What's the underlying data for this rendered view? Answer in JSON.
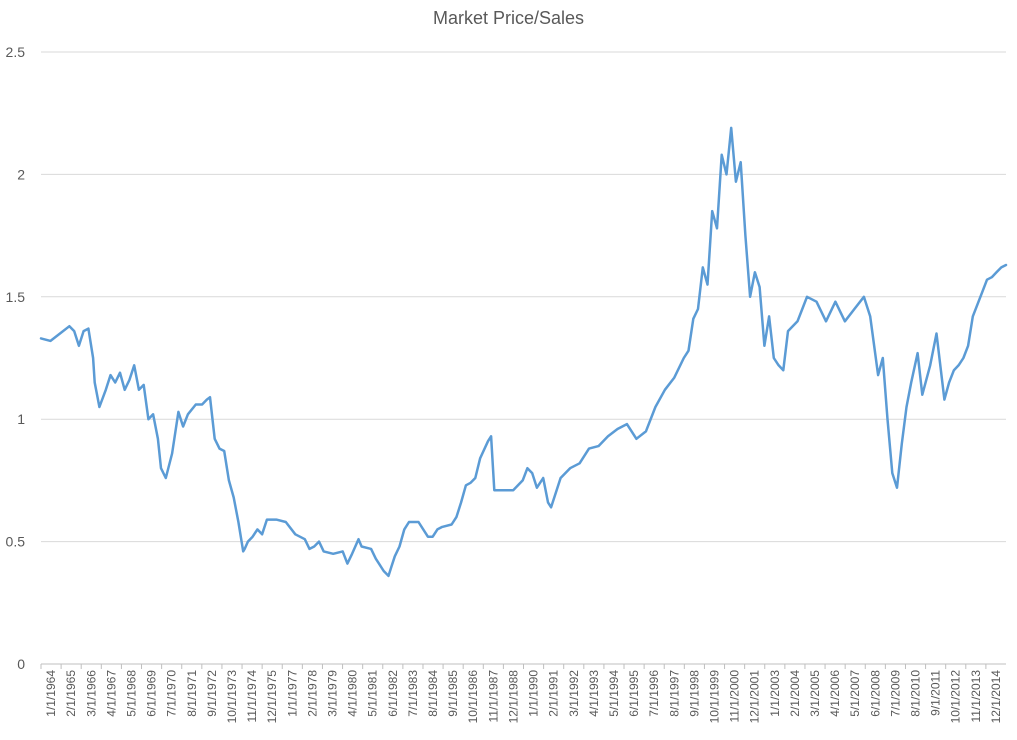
{
  "chart_data": {
    "type": "line",
    "title": "Market Price/Sales",
    "xlabel": "",
    "ylabel": "",
    "ylim": [
      0,
      2.5
    ],
    "yticks": [
      "0",
      "0.5",
      "1",
      "1.5",
      "2",
      "2.5"
    ],
    "xlim": [
      "1964-01",
      "2014-12"
    ],
    "grid": true,
    "legend": "none",
    "line_color": "#5b9bd5",
    "xtick_labels": [
      "1/1/1964",
      "2/1/1965",
      "3/1/1966",
      "4/1/1967",
      "5/1/1968",
      "6/1/1969",
      "7/1/1970",
      "8/1/1971",
      "9/1/1972",
      "10/1/1973",
      "11/1/1974",
      "12/1/1975",
      "1/1/1977",
      "2/1/1978",
      "3/1/1979",
      "4/1/1980",
      "5/1/1981",
      "6/1/1982",
      "7/1/1983",
      "8/1/1984",
      "9/1/1985",
      "10/1/1986",
      "11/1/1987",
      "12/1/1988",
      "1/1/1990",
      "2/1/1991",
      "3/1/1992",
      "4/1/1993",
      "5/1/1994",
      "6/1/1995",
      "7/1/1996",
      "8/1/1997",
      "9/1/1998",
      "10/1/1999",
      "11/1/2000",
      "12/1/2001",
      "1/1/2003",
      "2/1/2004",
      "3/1/2005",
      "4/1/2006",
      "5/1/2007",
      "6/1/2008",
      "7/1/2009",
      "8/1/2010",
      "9/1/2011",
      "10/1/2012",
      "11/1/2013",
      "12/1/2014"
    ],
    "series": [
      {
        "x": [
          "1964-01",
          "1964-07",
          "1965-01",
          "1965-07",
          "1965-10",
          "1966-01",
          "1966-04",
          "1966-07",
          "1966-10",
          "1966-11",
          "1967-02",
          "1967-06",
          "1967-09",
          "1967-12",
          "1968-03",
          "1968-06",
          "1968-09",
          "1968-12",
          "1969-03",
          "1969-06",
          "1969-09",
          "1969-12",
          "1970-03",
          "1970-05",
          "1970-08",
          "1970-12",
          "1971-04",
          "1971-07",
          "1971-10",
          "1972-03",
          "1972-07",
          "1972-10",
          "1972-12",
          "1973-03",
          "1973-06",
          "1973-09",
          "1973-12",
          "1974-03",
          "1974-06",
          "1974-09",
          "1974-10",
          "1974-12",
          "1975-03",
          "1975-06",
          "1975-09",
          "1975-12",
          "1976-06",
          "1976-12",
          "1977-06",
          "1977-12",
          "1978-03",
          "1978-06",
          "1978-09",
          "1978-12",
          "1979-06",
          "1979-12",
          "1980-03",
          "1980-06",
          "1980-10",
          "1980-12",
          "1981-06",
          "1981-09",
          "1982-02",
          "1982-05",
          "1982-07",
          "1982-09",
          "1982-12",
          "1983-03",
          "1983-06",
          "1983-12",
          "1984-06",
          "1984-09",
          "1984-12",
          "1985-03",
          "1985-09",
          "1985-12",
          "1986-03",
          "1986-06",
          "1986-09",
          "1986-12",
          "1987-03",
          "1987-08",
          "1987-10",
          "1987-12",
          "1988-06",
          "1988-12",
          "1989-06",
          "1989-09",
          "1989-12",
          "1990-03",
          "1990-07",
          "1990-10",
          "1990-12",
          "1991-06",
          "1991-12",
          "1992-06",
          "1992-12",
          "1993-06",
          "1993-12",
          "1994-06",
          "1994-12",
          "1995-06",
          "1995-12",
          "1996-06",
          "1996-12",
          "1997-06",
          "1997-12",
          "1998-03",
          "1998-06",
          "1998-09",
          "1998-12",
          "1999-03",
          "1999-06",
          "1999-09",
          "1999-12",
          "2000-03",
          "2000-06",
          "2000-09",
          "2000-12",
          "2001-03",
          "2001-06",
          "2001-09",
          "2001-12",
          "2002-03",
          "2002-06",
          "2002-09",
          "2002-12",
          "2003-03",
          "2003-06",
          "2003-12",
          "2004-03",
          "2004-06",
          "2004-12",
          "2005-06",
          "2005-12",
          "2006-06",
          "2006-12",
          "2007-06",
          "2007-10",
          "2008-03",
          "2008-06",
          "2008-09",
          "2008-12",
          "2009-03",
          "2009-06",
          "2009-09",
          "2009-12",
          "2010-04",
          "2010-07",
          "2010-12",
          "2011-04",
          "2011-09",
          "2011-12",
          "2012-03",
          "2012-06",
          "2012-09",
          "2012-12",
          "2013-03",
          "2013-06",
          "2013-09",
          "2013-12",
          "2014-03",
          "2014-06",
          "2014-09",
          "2014-12"
        ],
        "y": [
          1.33,
          1.32,
          1.35,
          1.38,
          1.36,
          1.3,
          1.36,
          1.37,
          1.25,
          1.15,
          1.05,
          1.12,
          1.18,
          1.15,
          1.19,
          1.12,
          1.16,
          1.22,
          1.12,
          1.14,
          1.0,
          1.02,
          0.92,
          0.8,
          0.76,
          0.86,
          1.03,
          0.97,
          1.02,
          1.06,
          1.06,
          1.08,
          1.09,
          0.92,
          0.88,
          0.87,
          0.75,
          0.68,
          0.58,
          0.46,
          0.47,
          0.5,
          0.52,
          0.55,
          0.53,
          0.59,
          0.59,
          0.58,
          0.53,
          0.51,
          0.47,
          0.48,
          0.5,
          0.46,
          0.45,
          0.46,
          0.41,
          0.45,
          0.51,
          0.48,
          0.47,
          0.43,
          0.38,
          0.36,
          0.4,
          0.44,
          0.48,
          0.55,
          0.58,
          0.58,
          0.52,
          0.52,
          0.55,
          0.56,
          0.57,
          0.6,
          0.66,
          0.73,
          0.74,
          0.76,
          0.84,
          0.91,
          0.93,
          0.71,
          0.71,
          0.71,
          0.75,
          0.8,
          0.78,
          0.72,
          0.76,
          0.66,
          0.64,
          0.76,
          0.8,
          0.82,
          0.88,
          0.89,
          0.93,
          0.96,
          0.98,
          0.92,
          0.95,
          1.05,
          1.12,
          1.17,
          1.25,
          1.28,
          1.41,
          1.45,
          1.62,
          1.55,
          1.85,
          1.78,
          2.08,
          2.0,
          2.19,
          1.97,
          2.05,
          1.75,
          1.5,
          1.6,
          1.54,
          1.3,
          1.42,
          1.25,
          1.22,
          1.2,
          1.36,
          1.4,
          1.45,
          1.5,
          1.48,
          1.4,
          1.48,
          1.4,
          1.45,
          1.5,
          1.42,
          1.18,
          1.25,
          1.0,
          0.78,
          0.72,
          0.9,
          1.05,
          1.15,
          1.27,
          1.1,
          1.22,
          1.35,
          1.08,
          1.15,
          1.2,
          1.22,
          1.25,
          1.3,
          1.42,
          1.47,
          1.52,
          1.57,
          1.58,
          1.6,
          1.62,
          1.63
        ]
      }
    ]
  }
}
